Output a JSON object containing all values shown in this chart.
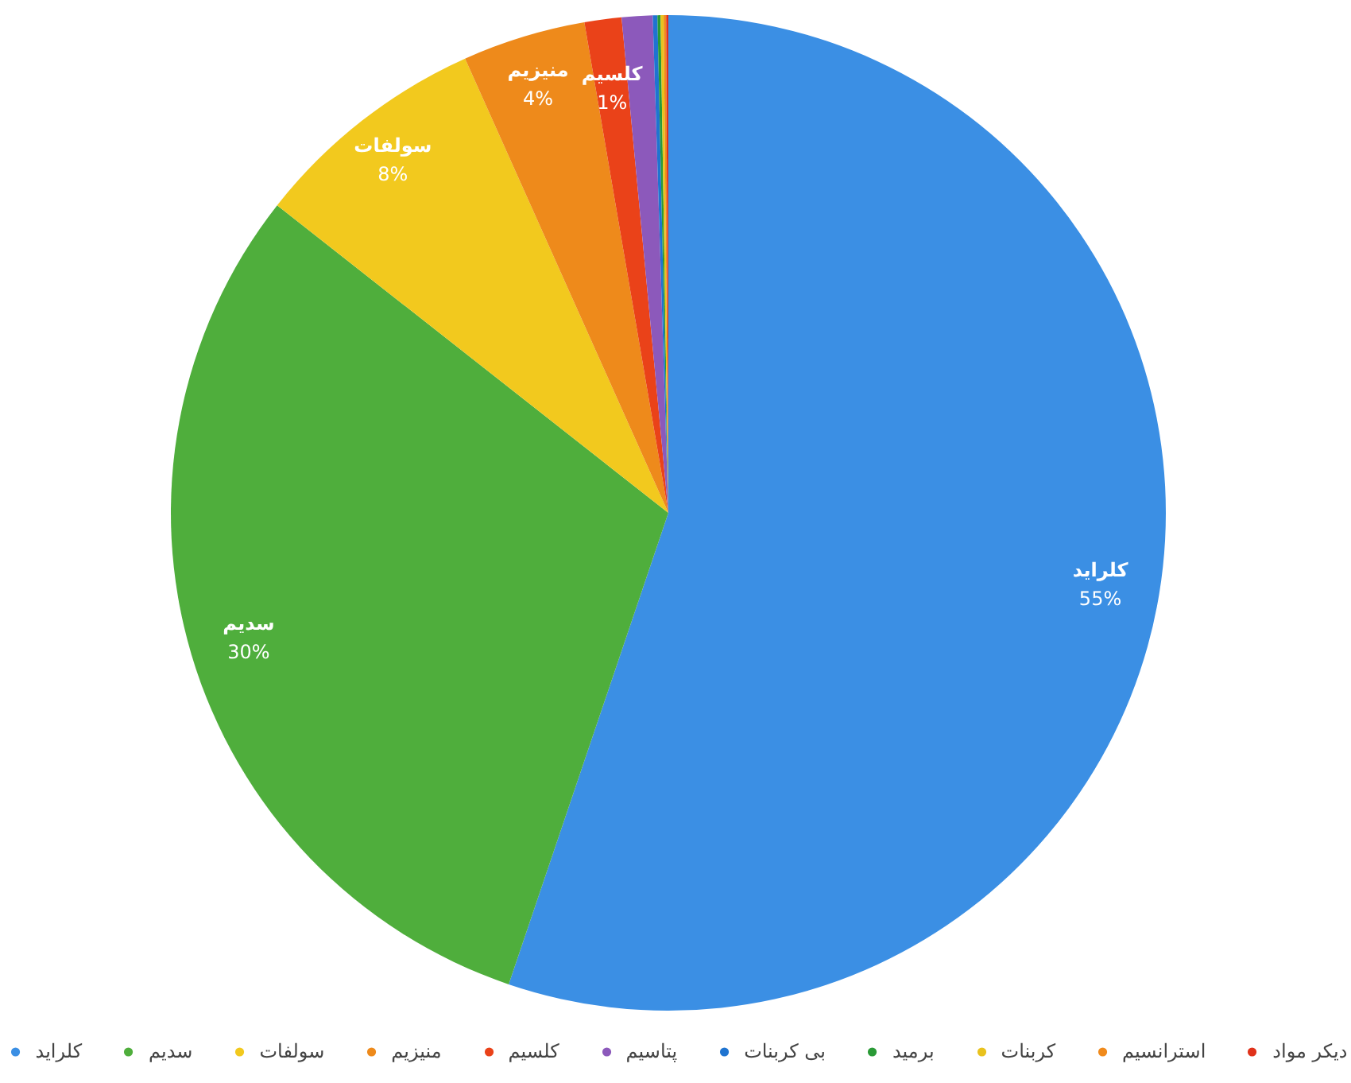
{
  "chart_data": {
    "type": "pie",
    "categories": [
      "کلراید",
      "سدیم",
      "سولفات",
      "منیزیم",
      "کلسیم",
      "پتاسیم",
      "بی کربنات",
      "برمید",
      "کربنات",
      "استرانسیم",
      "دیکر مواد"
    ],
    "values": [
      55.2,
      30.4,
      7.7,
      4.0,
      1.2,
      1.0,
      0.15,
      0.1,
      0.1,
      0.08,
      0.07
    ],
    "value_labels": [
      "55%",
      "30%",
      "8%",
      "4%",
      "1%",
      null,
      null,
      null,
      null,
      null,
      null
    ],
    "colors": [
      "#3b8fe4",
      "#4fae3c",
      "#f2c91e",
      "#ee8a1b",
      "#ea4219",
      "#8c59bb",
      "#1f74d0",
      "#2a9a36",
      "#e9c21d",
      "#f08a1c",
      "#e0321a"
    ],
    "legend": "bottom"
  }
}
